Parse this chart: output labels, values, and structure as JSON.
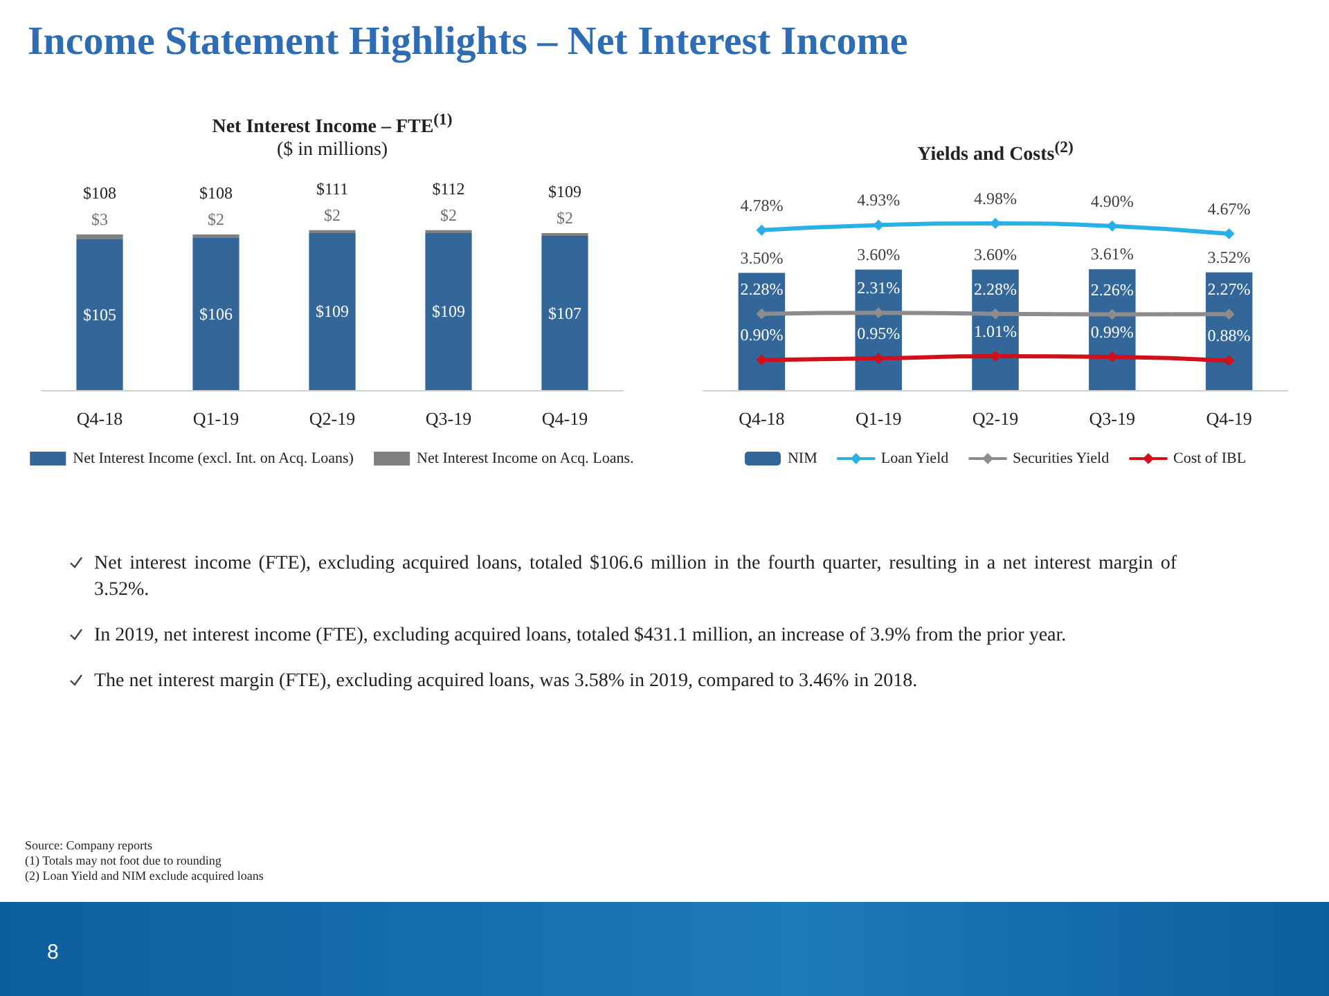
{
  "chart_data": [
    {
      "type": "bar",
      "title": "Net Interest Income – FTE$^{(1)}$",
      "subtitle": "($ in millions)",
      "categories": [
        "Q4-18",
        "Q1-19",
        "Q2-19",
        "Q3-19",
        "Q4-19"
      ],
      "stacked": true,
      "legend": "bottom",
      "tick_labels": "x",
      "series": [
        {
          "name": "Net Interest Income (excl. Int. on Acq. Loans)",
          "color": "#336699",
          "values": [
            105,
            106,
            109,
            109,
            107
          ],
          "value_labels": [
            "$105",
            "$106",
            "$109",
            "$109",
            "$107"
          ]
        },
        {
          "name": "Net Interest Income on Acq. Loans.",
          "color": "#808080",
          "values": [
            3,
            2,
            2,
            2,
            2
          ],
          "value_labels": [
            "$3",
            "$2",
            "$2",
            "$2",
            "$2"
          ]
        }
      ],
      "totals": [
        "$108",
        "$108",
        "$111",
        "$112",
        "$109"
      ],
      "annotations": [
        "Income Statement Highlights – Net Interest Income",
        "Net interest income (FTE), excluding acquired loans, totaled $106.6 million in the fourth quarter, resulting in a net interest margin of 3.52%.",
        "In 2019, net interest income (FTE), excluding acquired loans, totaled $431.1 million, an increase of 3.9% from the prior year.",
        "The net interest margin (FTE), excluding acquired loans, was 3.58% in 2019, compared to 3.46% in 2018.",
        "Source: Company reports",
        "(1) Totals may not foot due to rounding",
        "(2) Loan Yield and NIM exclude acquired loans",
        "8"
      ]
    },
    {
      "type": "bar",
      "title": "Yields and Costs$^{(2)}$",
      "categories": [
        "Q4-18",
        "Q1-19",
        "Q2-19",
        "Q3-19",
        "Q4-19"
      ],
      "legend": "bottom",
      "tick_labels": "x",
      "marker": "diamond",
      "line_style": "solid",
      "series": [
        {
          "name": "NIM",
          "color": "#336699",
          "values": [
            3.5,
            3.6,
            3.6,
            3.61,
            3.52
          ],
          "value_labels": [
            "3.50%",
            "3.60%",
            "3.60%",
            "3.61%",
            "3.52%"
          ]
        },
        {
          "name": "Loan Yield",
          "type": "line",
          "color": "#29b0e6",
          "values": [
            4.78,
            4.93,
            4.98,
            4.9,
            4.67
          ],
          "value_labels": [
            "4.78%",
            "4.93%",
            "4.98%",
            "4.90%",
            "4.67%"
          ]
        },
        {
          "name": "Securities Yield",
          "type": "line",
          "color": "#8c8c8c",
          "values": [
            2.28,
            2.31,
            2.28,
            2.26,
            2.27
          ],
          "value_labels": [
            "2.28%",
            "2.31%",
            "2.28%",
            "2.26%",
            "2.27%"
          ]
        },
        {
          "name": "Cost of IBL",
          "type": "line",
          "color": "#d0101a",
          "values": [
            0.9,
            0.95,
            1.01,
            0.99,
            0.88
          ],
          "value_labels": [
            "0.90%",
            "0.95%",
            "1.01%",
            "0.99%",
            "0.88%"
          ]
        }
      ]
    }
  ]
}
